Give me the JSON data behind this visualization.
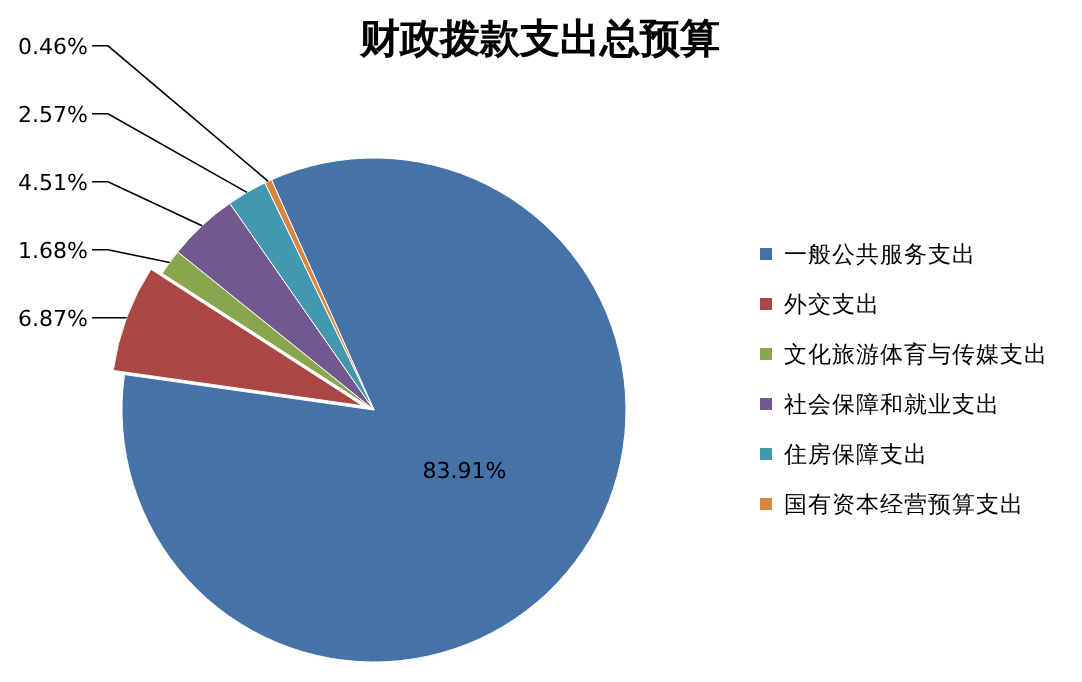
{
  "chart_data": {
    "type": "pie",
    "title": "财政拨款支出总预算",
    "categories": [
      "一般公共服务支出",
      "外交支出",
      "文化旅游体育与传媒支出",
      "社会保障和就业支出",
      "住房保障支出",
      "国有资本经营预算支出"
    ],
    "values": [
      83.91,
      6.87,
      1.68,
      4.51,
      2.57,
      0.46
    ],
    "colors": [
      "#4572a7",
      "#aa4643",
      "#89a54e",
      "#71588f",
      "#4198af",
      "#db843d"
    ],
    "value_labels": [
      "83.91%",
      "6.87%",
      "1.68%",
      "4.51%",
      "2.57%",
      "0.46%"
    ],
    "legend": "right"
  }
}
